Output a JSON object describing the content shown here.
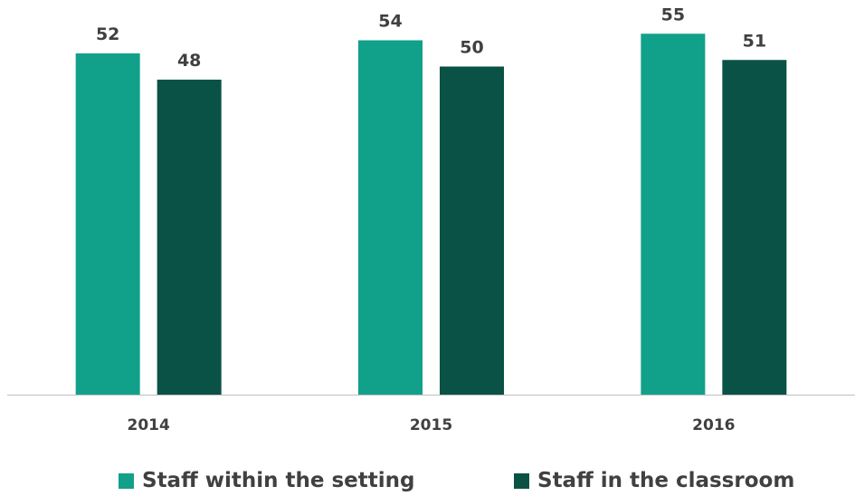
{
  "colors": {
    "series_1": "#11a08a",
    "series_2": "#0a5246",
    "axis": "#bfbfbf",
    "text": "#404040"
  },
  "chart_data": {
    "type": "bar",
    "categories": [
      "2014",
      "2015",
      "2016"
    ],
    "series": [
      {
        "name": "Staff within the setting",
        "values": [
          52,
          54,
          55
        ]
      },
      {
        "name": "Staff in the classroom",
        "values": [
          48,
          50,
          51
        ]
      }
    ],
    "ylim": [
      0,
      60
    ],
    "grid": false,
    "legend_position": "bottom",
    "data_labels": true
  }
}
